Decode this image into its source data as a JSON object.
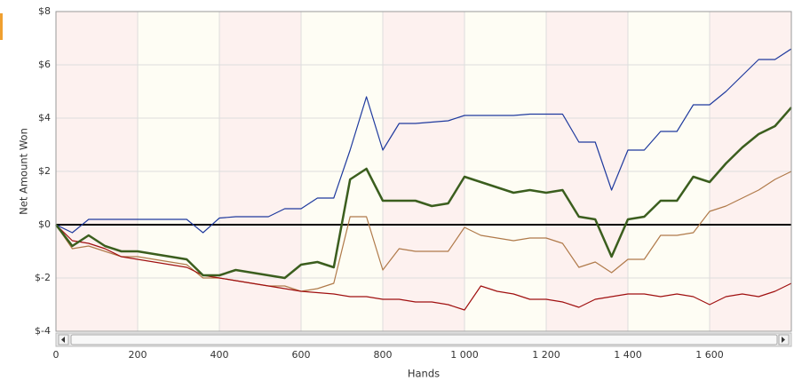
{
  "chart_data": {
    "type": "line",
    "y_label": "Net Amount Won",
    "x_label": "Hands",
    "x": [
      0,
      40,
      80,
      120,
      160,
      200,
      240,
      280,
      320,
      360,
      400,
      440,
      480,
      520,
      560,
      600,
      640,
      680,
      720,
      760,
      800,
      840,
      880,
      920,
      960,
      1000,
      1040,
      1080,
      1120,
      1160,
      1200,
      1240,
      1280,
      1320,
      1360,
      1400,
      1440,
      1480,
      1520,
      1560,
      1600,
      1640,
      1680,
      1720,
      1760,
      1800
    ],
    "series": [
      {
        "color": "#1f3a9e",
        "values": [
          0,
          -0.3,
          0.2,
          0.2,
          0.2,
          0.2,
          0.2,
          0.2,
          0.2,
          -0.3,
          0.25,
          0.3,
          0.3,
          0.3,
          0.6,
          0.6,
          1.0,
          1.0,
          2.8,
          4.8,
          2.8,
          3.8,
          3.8,
          3.85,
          3.9,
          4.1,
          4.1,
          4.1,
          4.1,
          4.15,
          4.15,
          4.15,
          3.1,
          3.1,
          1.3,
          2.8,
          2.8,
          3.5,
          3.5,
          4.5,
          4.5,
          5.0,
          5.6,
          6.2,
          6.2,
          6.6
        ]
      },
      {
        "color": "#3b5e1e",
        "values": [
          0,
          -0.8,
          -0.4,
          -0.8,
          -1.0,
          -1.0,
          -1.1,
          -1.2,
          -1.3,
          -1.9,
          -1.9,
          -1.7,
          -1.8,
          -1.9,
          -2.0,
          -1.5,
          -1.4,
          -1.6,
          1.7,
          2.1,
          0.9,
          0.9,
          0.9,
          0.7,
          0.8,
          1.8,
          1.6,
          1.4,
          1.2,
          1.3,
          1.2,
          1.3,
          0.3,
          0.2,
          -1.2,
          0.2,
          0.3,
          0.9,
          0.9,
          1.8,
          1.6,
          2.3,
          2.9,
          3.4,
          3.7,
          4.4
        ]
      },
      {
        "color": "#b07a4a",
        "values": [
          0,
          -0.9,
          -0.8,
          -1.0,
          -1.2,
          -1.2,
          -1.3,
          -1.4,
          -1.5,
          -2.0,
          -2.0,
          -2.1,
          -2.2,
          -2.3,
          -2.3,
          -2.5,
          -2.4,
          -2.2,
          0.3,
          0.3,
          -1.7,
          -0.9,
          -1.0,
          -1.0,
          -1.0,
          -0.1,
          -0.4,
          -0.5,
          -0.6,
          -0.5,
          -0.5,
          -0.7,
          -1.6,
          -1.4,
          -1.8,
          -1.3,
          -1.3,
          -0.4,
          -0.4,
          -0.3,
          0.5,
          0.7,
          1.0,
          1.3,
          1.7,
          2.0
        ]
      },
      {
        "color": "#a01010",
        "values": [
          0,
          -0.6,
          -0.7,
          -0.9,
          -1.2,
          -1.3,
          -1.4,
          -1.5,
          -1.6,
          -1.9,
          -2.0,
          -2.1,
          -2.2,
          -2.3,
          -2.4,
          -2.5,
          -2.55,
          -2.6,
          -2.7,
          -2.7,
          -2.8,
          -2.8,
          -2.9,
          -2.9,
          -3.0,
          -3.2,
          -2.3,
          -2.5,
          -2.6,
          -2.8,
          -2.8,
          -2.9,
          -3.1,
          -2.8,
          -2.7,
          -2.6,
          -2.6,
          -2.7,
          -2.6,
          -2.7,
          -3.0,
          -2.7,
          -2.6,
          -2.7,
          -2.5,
          -2.2
        ]
      }
    ],
    "xlim": [
      0,
      1800
    ],
    "ylim": [
      -4,
      8
    ],
    "xticks": [
      0,
      200,
      400,
      600,
      800,
      {
        "value": 1000,
        "label": "1 000"
      },
      {
        "value": 1200,
        "label": "1 200"
      },
      {
        "value": 1400,
        "label": "1 400"
      },
      {
        "value": 1600,
        "label": "1 600"
      }
    ],
    "yticks": [
      {
        "value": -4,
        "label": "$-4"
      },
      {
        "value": -2,
        "label": "$-2"
      },
      {
        "value": 0,
        "label": "$0"
      },
      {
        "value": 2,
        "label": "$2"
      },
      {
        "value": 4,
        "label": "$4"
      },
      {
        "value": 6,
        "label": "$6"
      },
      {
        "value": 8,
        "label": "$8"
      }
    ],
    "grid": true
  }
}
